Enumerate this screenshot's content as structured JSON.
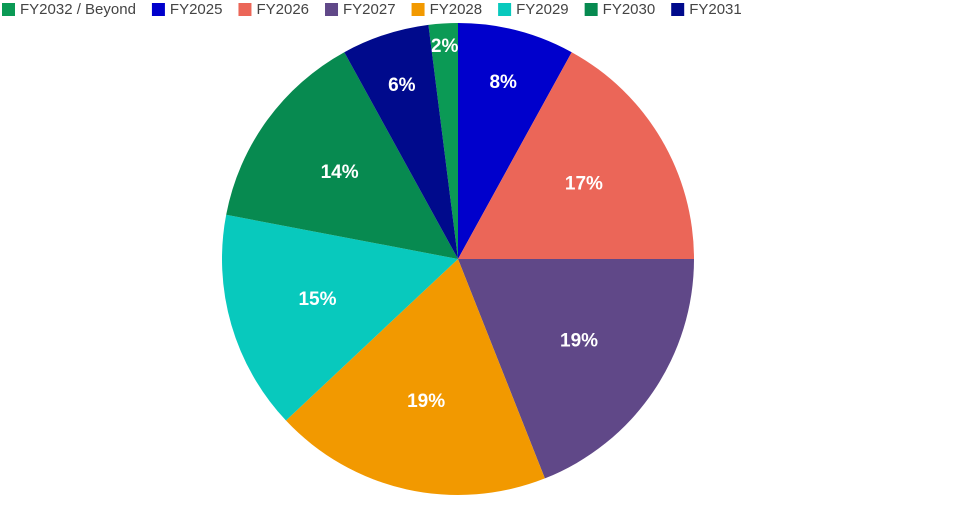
{
  "chart_data": {
    "type": "pie",
    "categories": [
      "FY2032 / Beyond",
      "FY2025",
      "FY2026",
      "FY2027",
      "FY2028",
      "FY2029",
      "FY2030",
      "FY2031"
    ],
    "values": [
      2,
      8,
      17,
      19,
      19,
      15,
      14,
      6
    ],
    "value_labels": [
      "2%",
      "8%",
      "17%",
      "19%",
      "19%",
      "15%",
      "14%",
      "6%"
    ],
    "colors": [
      "#0b9a55",
      "#0000cc",
      "#eb6658",
      "#604888",
      "#f29900",
      "#08c9bd",
      "#078a50",
      "#000a8c"
    ],
    "legend": "top"
  }
}
